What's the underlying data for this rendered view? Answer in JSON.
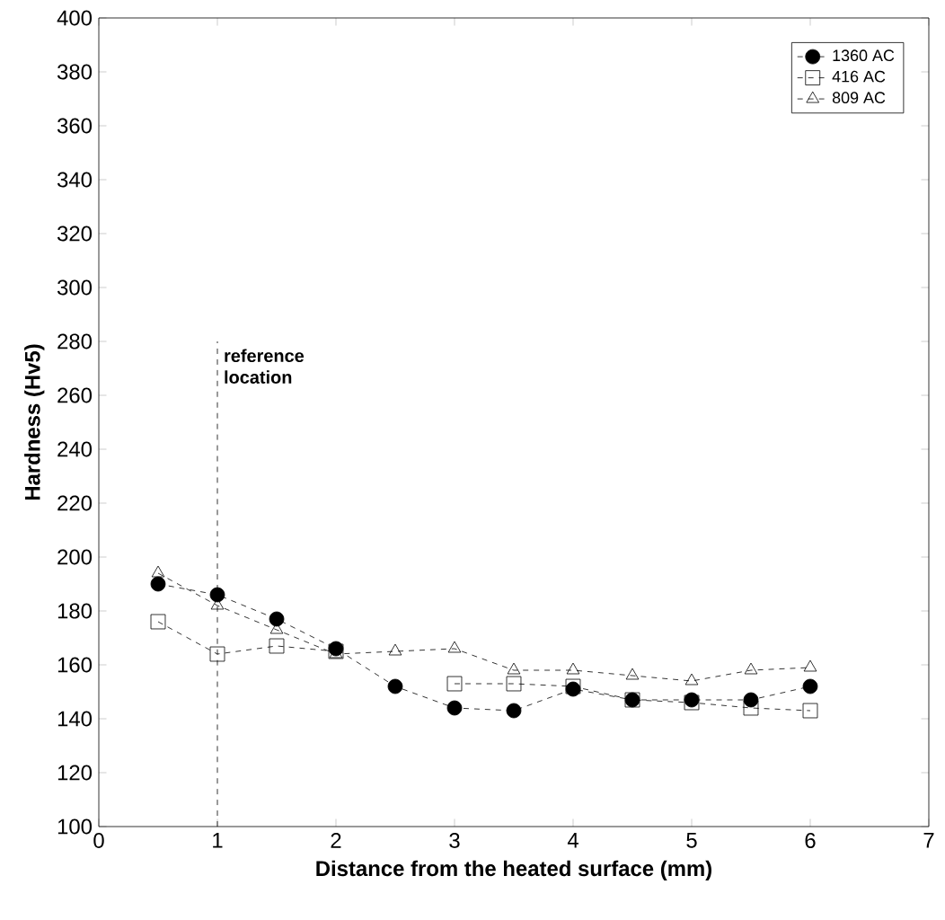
{
  "chart_data": {
    "type": "line",
    "xlabel": "Distance from the heated surface (mm)",
    "ylabel": "Hardness (Hv5)",
    "x": [
      0.5,
      1,
      1.5,
      2,
      2.5,
      3,
      3.5,
      4,
      4.5,
      5,
      5.5,
      6
    ],
    "series": [
      {
        "name": "1360 AC",
        "color": "#000000",
        "marker": "circle",
        "values": [
          190,
          186,
          177,
          166,
          152,
          144,
          143,
          151,
          147,
          147,
          147,
          152
        ]
      },
      {
        "name": "416 AC",
        "color": "#000000",
        "marker": "square",
        "values": [
          176,
          164,
          167,
          165,
          null,
          153,
          153,
          152,
          147,
          146,
          144,
          143
        ]
      },
      {
        "name": "809 AC",
        "color": "#000000",
        "marker": "triangle",
        "values": [
          194,
          182,
          173,
          164,
          165,
          166,
          158,
          158,
          156,
          154,
          158,
          159
        ]
      }
    ],
    "line_style": "dashed",
    "legend": "top right",
    "xlim": [
      0,
      7
    ],
    "xticks": [
      0,
      1,
      2,
      3,
      4,
      5,
      6,
      7
    ],
    "ylim": [
      100,
      400
    ],
    "yticks": [
      100,
      120,
      140,
      160,
      180,
      200,
      220,
      240,
      260,
      280,
      300,
      320,
      340,
      360,
      380,
      400
    ],
    "ref_lines": [
      {
        "axis": "x",
        "value": 1,
        "label": "reference location",
        "line_style": "dashed"
      }
    ]
  }
}
